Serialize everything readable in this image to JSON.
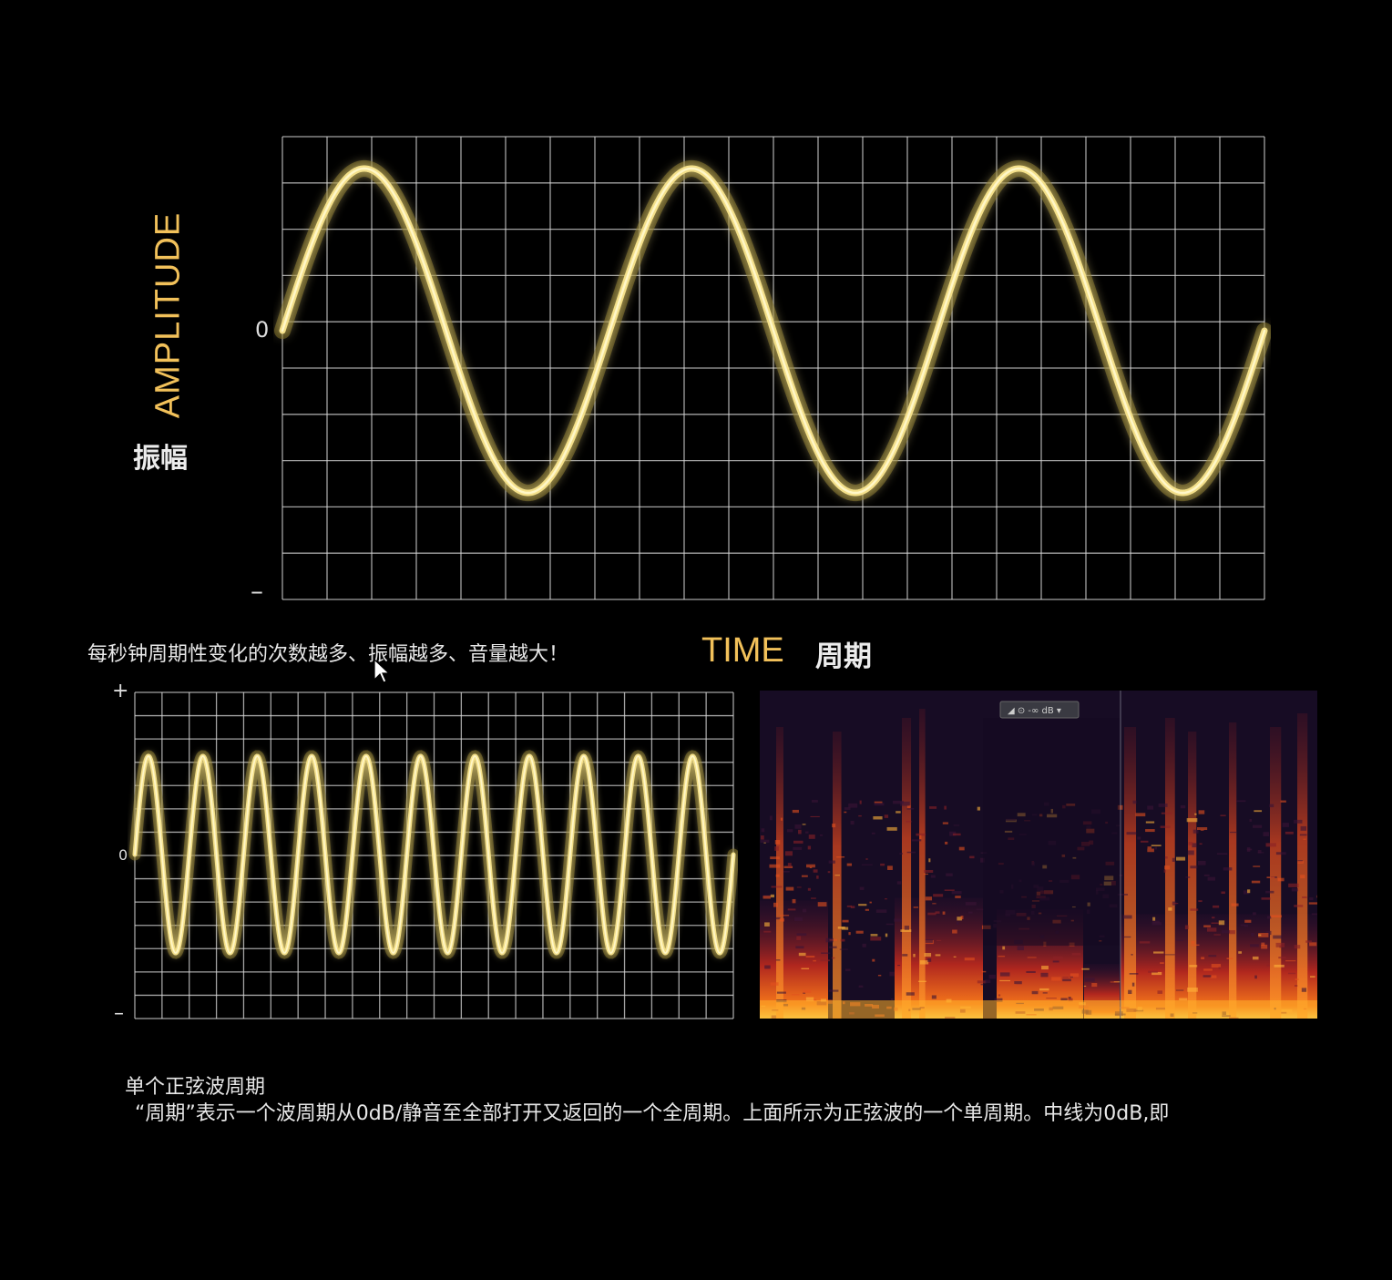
{
  "top_chart": {
    "ylabel": "AMPLITUDE",
    "ylabel_zh": "振幅",
    "zero_tick": "0",
    "minus_tick": "–",
    "xlabel": "TIME",
    "xlabel_zh": "周期",
    "wave_color": "#f4e08a",
    "cycles": 3
  },
  "caption": "每秒钟周期性变化的次数越多、振幅越多、音量越大！",
  "bottom_chart": {
    "plus_tick": "+",
    "zero_tick": "0",
    "minus_tick": "–",
    "cycles": 11
  },
  "spectrogram": {
    "toolbar_label": "◢ ⊙ -∞ dB ▾"
  },
  "note": {
    "title": "单个正弦波周期",
    "body": "“周期”表示一个波周期从0dB/静音至全部打开又返回的一个全周期。上面所示为正弦波的一个单周期。中线为0dB,即"
  }
}
